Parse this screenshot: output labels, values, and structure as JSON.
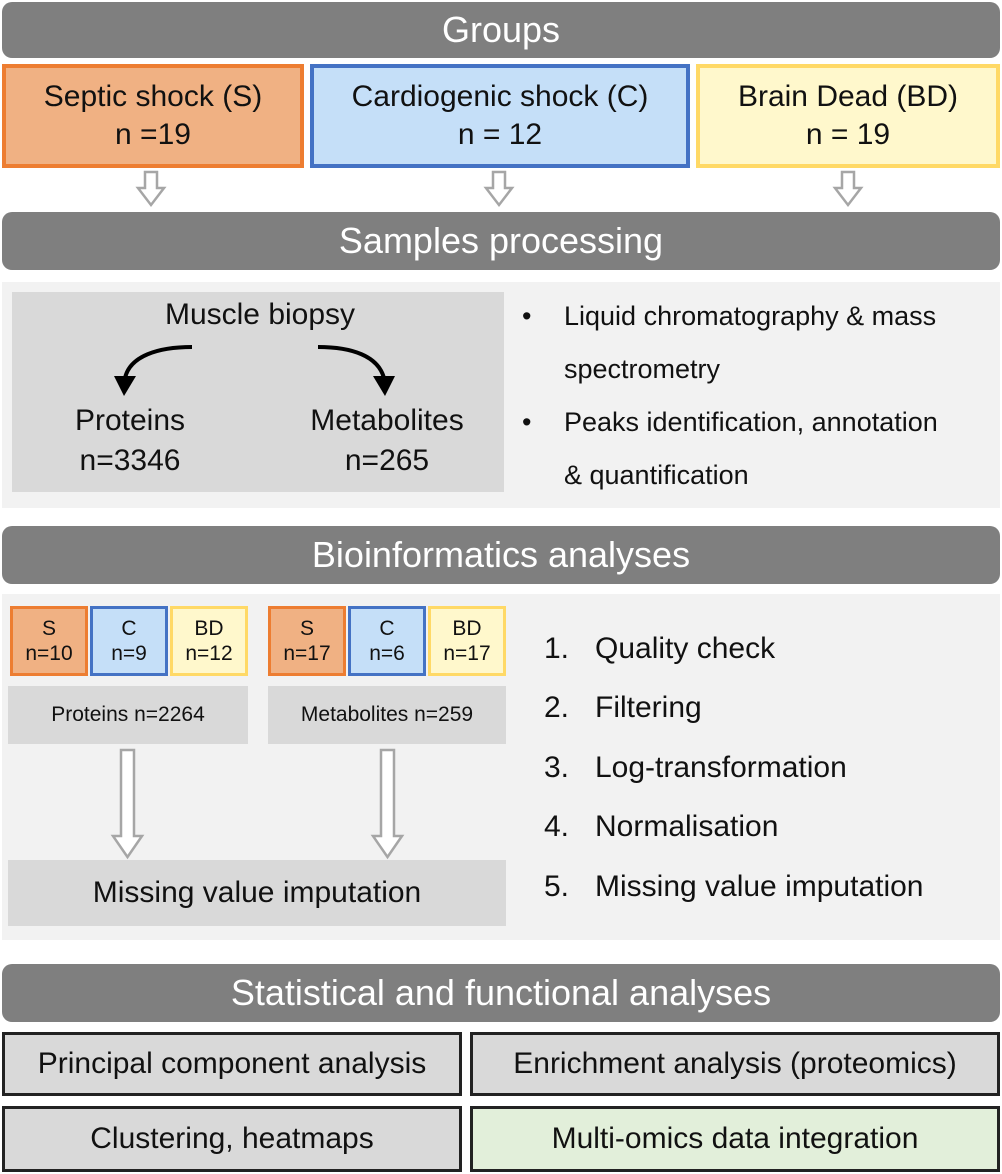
{
  "headers": {
    "groups": "Groups",
    "samples": "Samples processing",
    "bioinfo": "Bioinformatics analyses",
    "stats": "Statistical and functional analyses"
  },
  "groups": [
    {
      "name": "Septic shock (S)",
      "n": "n =19",
      "color": "#ed7d31"
    },
    {
      "name": "Cardiogenic shock (C)",
      "n": "n = 12",
      "color": "#4472c4"
    },
    {
      "name": "Brain Dead (BD)",
      "n": "n = 19",
      "color": "#ffd966"
    }
  ],
  "samples": {
    "source": "Muscle biopsy",
    "proteins": {
      "label": "Proteins",
      "n": "n=3346"
    },
    "metabolites": {
      "label": "Metabolites",
      "n": "n=265"
    },
    "bullets": [
      {
        "line1": "Liquid chromatography & mass",
        "line2": "spectrometry"
      },
      {
        "line1": "Peaks identification, annotation",
        "line2": "& quantification"
      }
    ]
  },
  "bioinfo": {
    "proteins_groups": [
      {
        "label": "S",
        "n": "n=10"
      },
      {
        "label": "C",
        "n": "n=9"
      },
      {
        "label": "BD",
        "n": "n=12"
      }
    ],
    "metabolites_groups": [
      {
        "label": "S",
        "n": "n=17"
      },
      {
        "label": "C",
        "n": "n=6"
      },
      {
        "label": "BD",
        "n": "n=17"
      }
    ],
    "proteins_total": "Proteins n=2264",
    "metabolites_total": "Metabolites n=259",
    "imputation": "Missing value imputation",
    "steps": [
      {
        "num": "1.",
        "text": "Quality check"
      },
      {
        "num": "2.",
        "text": "Filtering"
      },
      {
        "num": "3.",
        "text": "Log-transformation"
      },
      {
        "num": "4.",
        "text": "Normalisation"
      },
      {
        "num": "5.",
        "text": "Missing value imputation"
      }
    ]
  },
  "stats": {
    "pca": "Principal component analysis",
    "enrichment": "Enrichment analysis (proteomics)",
    "clustering": "Clustering, heatmaps",
    "multiomics": "Multi-omics data integration"
  },
  "colors": {
    "header": "#7f7f7f",
    "septic": "#ed7d31",
    "cardiogenic": "#4472c4",
    "brain_dead": "#ffd966",
    "multiomics_fill": "#e2efda"
  }
}
